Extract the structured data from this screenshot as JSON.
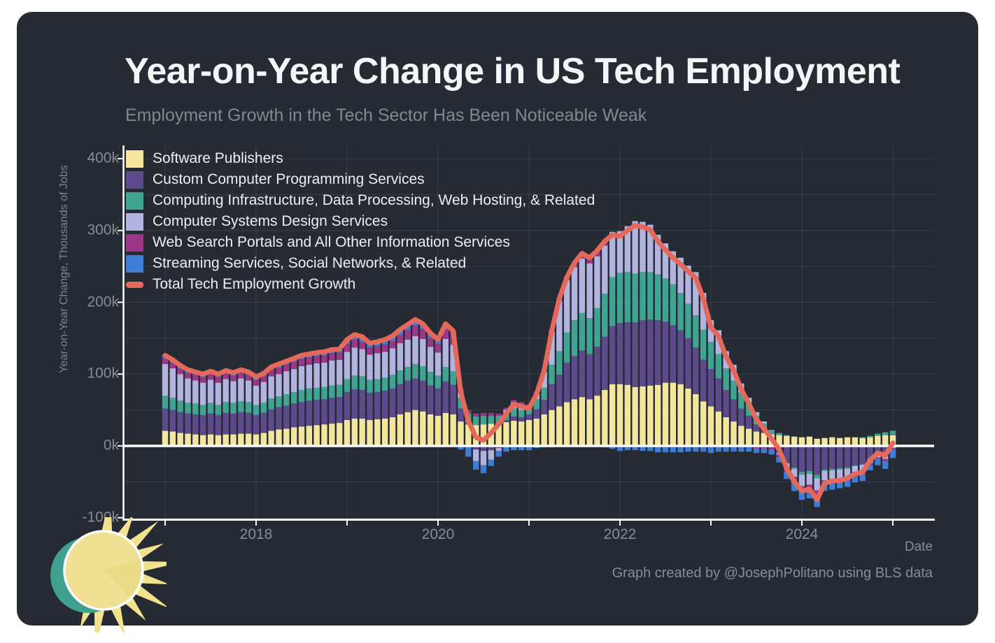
{
  "header": {
    "title": "Year-on-Year Change in US Tech Employment",
    "subtitle": "Employment Growth in the Tech Sector Has Been Noticeable Weak"
  },
  "footer": {
    "credit": "Graph created by @JosephPolitano using BLS data"
  },
  "axes": {
    "y_title": "Year-on-Year Change, Thousands of Jobs",
    "x_title": "Date",
    "y_tick_labels": [
      "400k",
      "300k",
      "200k",
      "100k",
      "0k",
      "-100k"
    ],
    "y_tick_values": [
      400,
      300,
      200,
      100,
      0,
      -100
    ],
    "x_tick_labels": [
      "2018",
      "2020",
      "2022",
      "2024"
    ],
    "x_tick_month_index": [
      12,
      36,
      60,
      84
    ]
  },
  "colors": {
    "card_background": "#262A33",
    "grid": "#3A3F48",
    "axis": "#FFFFFF",
    "title_text": "#F5F6F7",
    "muted_text": "#878D97",
    "legend_text": "#EDEEF0"
  },
  "branding": {
    "logo": "sun-icon"
  },
  "chart_data": {
    "type": "bar",
    "stacked": true,
    "x_start": "2017-01",
    "x_frequency": "monthly",
    "n_months": 97,
    "unit": "thousands of jobs, year-on-year change",
    "ylim": [
      -100,
      430
    ],
    "gridline_step": 50,
    "grid": true,
    "legend_position": "top-left-inside",
    "series": [
      {
        "name": "Software Publishers",
        "color": "#F5E69E",
        "values": [
          21,
          20,
          18,
          17,
          16,
          15,
          16,
          15,
          16,
          16,
          17,
          17,
          16,
          18,
          21,
          23,
          24,
          26,
          27,
          28,
          29,
          30,
          31,
          32,
          36,
          38,
          38,
          36,
          37,
          38,
          40,
          44,
          47,
          50,
          48,
          44,
          42,
          46,
          44,
          34,
          30,
          29,
          30,
          31,
          32,
          33,
          35,
          34,
          36,
          38,
          44,
          50,
          55,
          61,
          65,
          68,
          65,
          70,
          78,
          86,
          86,
          85,
          82,
          83,
          84,
          85,
          88,
          88,
          86,
          80,
          72,
          62,
          55,
          48,
          40,
          34,
          28,
          24,
          20,
          18,
          16,
          15,
          14,
          13,
          12,
          13,
          10,
          11,
          12,
          11,
          12,
          12,
          11,
          12,
          14,
          15,
          15
        ]
      },
      {
        "name": "Custom Computer Programming Services",
        "color": "#5D4A8C",
        "values": [
          31,
          30,
          29,
          28,
          28,
          28,
          29,
          28,
          30,
          29,
          30,
          29,
          27,
          28,
          30,
          31,
          32,
          33,
          34,
          35,
          35,
          35,
          36,
          36,
          39,
          41,
          40,
          38,
          38,
          39,
          40,
          42,
          44,
          44,
          43,
          40,
          38,
          44,
          41,
          18,
          2,
          -5,
          -7,
          -6,
          -3,
          3,
          6,
          6,
          8,
          13,
          20,
          36,
          44,
          55,
          60,
          65,
          63,
          68,
          74,
          81,
          85,
          87,
          90,
          92,
          92,
          90,
          85,
          80,
          75,
          70,
          65,
          58,
          52,
          46,
          38,
          31,
          24,
          18,
          10,
          5,
          -2,
          -10,
          -24,
          -30,
          -36,
          -35,
          -40,
          -33,
          -32,
          -31,
          -30,
          -27,
          -26,
          -18,
          -12,
          -14,
          1
        ]
      },
      {
        "name": "Computing Infrastructure, Data Processing, Web Hosting, & Related",
        "color": "#40A492",
        "values": [
          18,
          17,
          16,
          15,
          15,
          14,
          15,
          14,
          15,
          15,
          15,
          15,
          14,
          14,
          15,
          15,
          16,
          16,
          17,
          17,
          17,
          17,
          17,
          17,
          18,
          19,
          19,
          18,
          18,
          18,
          19,
          19,
          19,
          20,
          20,
          19,
          18,
          20,
          19,
          15,
          13,
          12,
          12,
          11,
          10,
          10,
          11,
          10,
          11,
          14,
          17,
          27,
          33,
          42,
          50,
          52,
          50,
          54,
          60,
          68,
          70,
          70,
          68,
          67,
          66,
          64,
          60,
          57,
          52,
          48,
          45,
          42,
          38,
          34,
          30,
          26,
          22,
          18,
          12,
          8,
          5,
          3,
          1,
          -2,
          -4,
          -4,
          -5,
          -2,
          -2,
          -2,
          -2,
          -1,
          1,
          2,
          3,
          4,
          5
        ]
      },
      {
        "name": "Computer Systems Design Services",
        "color": "#B2B4DF",
        "values": [
          44,
          41,
          37,
          34,
          32,
          31,
          32,
          31,
          32,
          30,
          32,
          30,
          27,
          29,
          31,
          31,
          32,
          32,
          33,
          33,
          34,
          34,
          35,
          35,
          38,
          39,
          38,
          35,
          36,
          36,
          37,
          38,
          38,
          39,
          38,
          35,
          32,
          39,
          37,
          7,
          0,
          -16,
          -20,
          -13,
          -4,
          4,
          9,
          8,
          -2,
          7,
          22,
          46,
          70,
          73,
          74,
          76,
          76,
          72,
          67,
          63,
          58,
          64,
          73,
          70,
          66,
          55,
          49,
          46,
          49,
          53,
          60,
          51,
          30,
          33,
          24,
          22,
          13,
          7,
          5,
          3,
          1,
          -2,
          -7,
          -11,
          -16,
          -15,
          -17,
          -13,
          -12,
          -12,
          -11,
          -10,
          -10,
          -6,
          -4,
          -4,
          -3
        ]
      },
      {
        "name": "Web Search Portals and All Other Information Services",
        "color": "#9B3689",
        "values": [
          8,
          8,
          8,
          8,
          8,
          8,
          8,
          8,
          8,
          8,
          8,
          8,
          8,
          8,
          9,
          9,
          9,
          10,
          10,
          10,
          10,
          10,
          10,
          10,
          11,
          11,
          10,
          10,
          10,
          10,
          10,
          11,
          13,
          15,
          14,
          13,
          12,
          14,
          13,
          6,
          5,
          4,
          4,
          4,
          3,
          3,
          3,
          3,
          3,
          3,
          4,
          3,
          4,
          5,
          7,
          8,
          9,
          9,
          8,
          -1,
          -2,
          -2,
          -2,
          -2,
          -2,
          -2,
          -2,
          -2,
          -2,
          -2,
          -2,
          -2,
          -2,
          -2,
          -2,
          -2,
          -2,
          -2,
          -3,
          -3,
          -3,
          -4,
          -5,
          -7,
          -7,
          -7,
          -8,
          -6,
          -6,
          -5,
          -5,
          -4,
          -4,
          -2,
          -2,
          -3,
          -2
        ]
      },
      {
        "name": "Streaming Services, Social Networks, & Related",
        "color": "#3E7CD6",
        "values": [
          4,
          4,
          4,
          4,
          4,
          4,
          4,
          4,
          4,
          4,
          4,
          4,
          4,
          4,
          4,
          5,
          5,
          5,
          5,
          5,
          5,
          5,
          5,
          5,
          6,
          7,
          7,
          6,
          6,
          7,
          7,
          8,
          8,
          8,
          7,
          6,
          6,
          7,
          6,
          -5,
          -15,
          -12,
          -11,
          -9,
          -8,
          -8,
          -6,
          -6,
          -4,
          -3,
          -2,
          -2,
          -1,
          -1,
          -1,
          -1,
          -1,
          -1,
          -2,
          -3,
          -5,
          -4,
          -4,
          -5,
          -5,
          -7,
          -7,
          -7,
          -7,
          -6,
          -6,
          -6,
          -8,
          -6,
          -6,
          -6,
          -6,
          -6,
          -7,
          -7,
          -7,
          -7,
          -10,
          -13,
          -12,
          -12,
          -15,
          -9,
          -9,
          -9,
          -9,
          -9,
          -9,
          -8,
          -9,
          -11,
          -12
        ]
      }
    ],
    "total_line": {
      "name": "Total Tech Employment Growth",
      "color": "#E4695A",
      "values": [
        126,
        120,
        112,
        106,
        103,
        100,
        104,
        100,
        105,
        102,
        106,
        103,
        96,
        101,
        110,
        114,
        118,
        122,
        126,
        128,
        130,
        131,
        134,
        135,
        148,
        155,
        152,
        143,
        145,
        148,
        153,
        162,
        169,
        176,
        170,
        157,
        148,
        170,
        160,
        75,
        35,
        12,
        8,
        18,
        30,
        45,
        58,
        55,
        52,
        72,
        105,
        160,
        205,
        235,
        255,
        268,
        262,
        272,
        285,
        294,
        292,
        300,
        307,
        305,
        301,
        285,
        273,
        262,
        253,
        243,
        234,
        205,
        165,
        153,
        124,
        105,
        79,
        59,
        37,
        24,
        10,
        -5,
        -31,
        -50,
        -63,
        -60,
        -75,
        -52,
        -49,
        -48,
        -45,
        -39,
        -37,
        -20,
        -10,
        -13,
        4
      ]
    }
  }
}
